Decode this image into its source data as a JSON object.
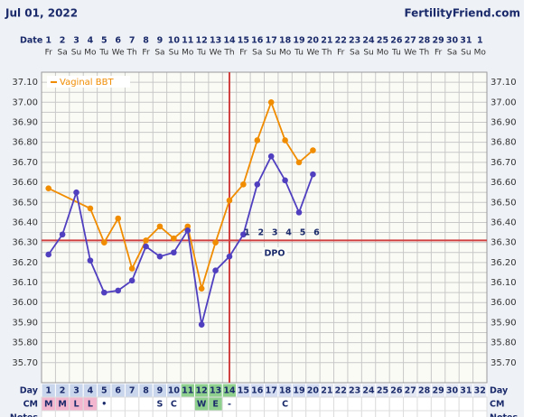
{
  "chart_data": {
    "type": "line",
    "title": "Jul 01, 2022",
    "source": "FertilityFriend.com",
    "date_label": "Date",
    "dates": [
      1,
      2,
      3,
      4,
      5,
      6,
      7,
      8,
      9,
      10,
      11,
      12,
      13,
      14,
      15,
      16,
      17,
      18,
      19,
      20,
      21,
      22,
      23,
      24,
      25,
      26,
      27,
      28,
      29,
      30,
      31,
      1
    ],
    "weekdays": [
      "Fr",
      "Sa",
      "Su",
      "Mo",
      "Tu",
      "We",
      "Th",
      "Fr",
      "Sa",
      "Su",
      "Mo",
      "Tu",
      "We",
      "Th",
      "Fr",
      "Sa",
      "Su",
      "Mo",
      "Tu",
      "We",
      "Th",
      "Fr",
      "Sa",
      "Su",
      "Mo",
      "Tu",
      "We",
      "Th",
      "Fr",
      "Sa",
      "Su",
      "Mo"
    ],
    "xlim": [
      0.5,
      32.5
    ],
    "ylim": [
      35.6,
      37.15
    ],
    "yticks": [
      {
        "value": 35.7,
        "label": "35.70"
      },
      {
        "value": 35.8,
        "label": "35.80"
      },
      {
        "value": 35.9,
        "label": "35.90"
      },
      {
        "value": 36.0,
        "label": "36.00"
      },
      {
        "value": 36.1,
        "label": "36.10"
      },
      {
        "value": 36.2,
        "label": "36.20"
      },
      {
        "value": 36.3,
        "label": "36.30"
      },
      {
        "value": 36.4,
        "label": "36.40"
      },
      {
        "value": 36.5,
        "label": "36.50"
      },
      {
        "value": 36.6,
        "label": "36.60"
      },
      {
        "value": 36.7,
        "label": "36.70"
      },
      {
        "value": 36.8,
        "label": "36.80"
      },
      {
        "value": 36.9,
        "label": "36.90"
      },
      {
        "value": 37.0,
        "label": "37.00"
      },
      {
        "value": 37.1,
        "label": "37.10"
      }
    ],
    "grid": true,
    "series": [
      {
        "name": "Vaginal BBT",
        "color": "#f08c00",
        "x": [
          1,
          4,
          5,
          6,
          7,
          8,
          9,
          10,
          11,
          12,
          13,
          14,
          15,
          16,
          17,
          18,
          19,
          20
        ],
        "values": [
          36.57,
          36.47,
          36.3,
          36.42,
          36.17,
          36.31,
          36.38,
          36.32,
          36.38,
          36.07,
          36.3,
          36.51,
          36.59,
          36.81,
          37.0,
          36.81,
          36.7,
          36.76
        ]
      },
      {
        "color": "#5040c0",
        "x": [
          1,
          2,
          3,
          4,
          5,
          6,
          7,
          8,
          9,
          10,
          11,
          12,
          13,
          14,
          15,
          16,
          17,
          18,
          19,
          20
        ],
        "values": [
          36.24,
          36.34,
          36.55,
          36.21,
          36.05,
          36.06,
          36.11,
          36.28,
          36.23,
          36.25,
          36.36,
          35.89,
          36.16,
          36.23,
          36.34,
          36.59,
          36.73,
          36.61,
          36.45,
          36.64
        ]
      }
    ],
    "coverline": 36.31,
    "ovulation_day": 14,
    "dpo": {
      "x": [
        15,
        16,
        17,
        18,
        19,
        20
      ],
      "values": [
        1,
        2,
        3,
        4,
        5,
        6
      ],
      "label": "DPO"
    },
    "day_label": "Day",
    "days": [
      1,
      2,
      3,
      4,
      5,
      6,
      7,
      8,
      9,
      10,
      11,
      12,
      13,
      14,
      15,
      16,
      17,
      18,
      19,
      20,
      21,
      22,
      23,
      24,
      25,
      26,
      27,
      28,
      29,
      30,
      31,
      32
    ],
    "cm_label": "CM",
    "cm": [
      "M",
      "M",
      "L",
      "L",
      "•",
      null,
      null,
      null,
      "S",
      "C",
      null,
      "W",
      "E",
      "-",
      null,
      null,
      null,
      "C",
      null,
      null,
      null,
      null,
      null,
      null,
      null,
      null,
      null,
      null,
      null,
      null,
      null,
      null
    ],
    "notes_label": "Notes"
  }
}
